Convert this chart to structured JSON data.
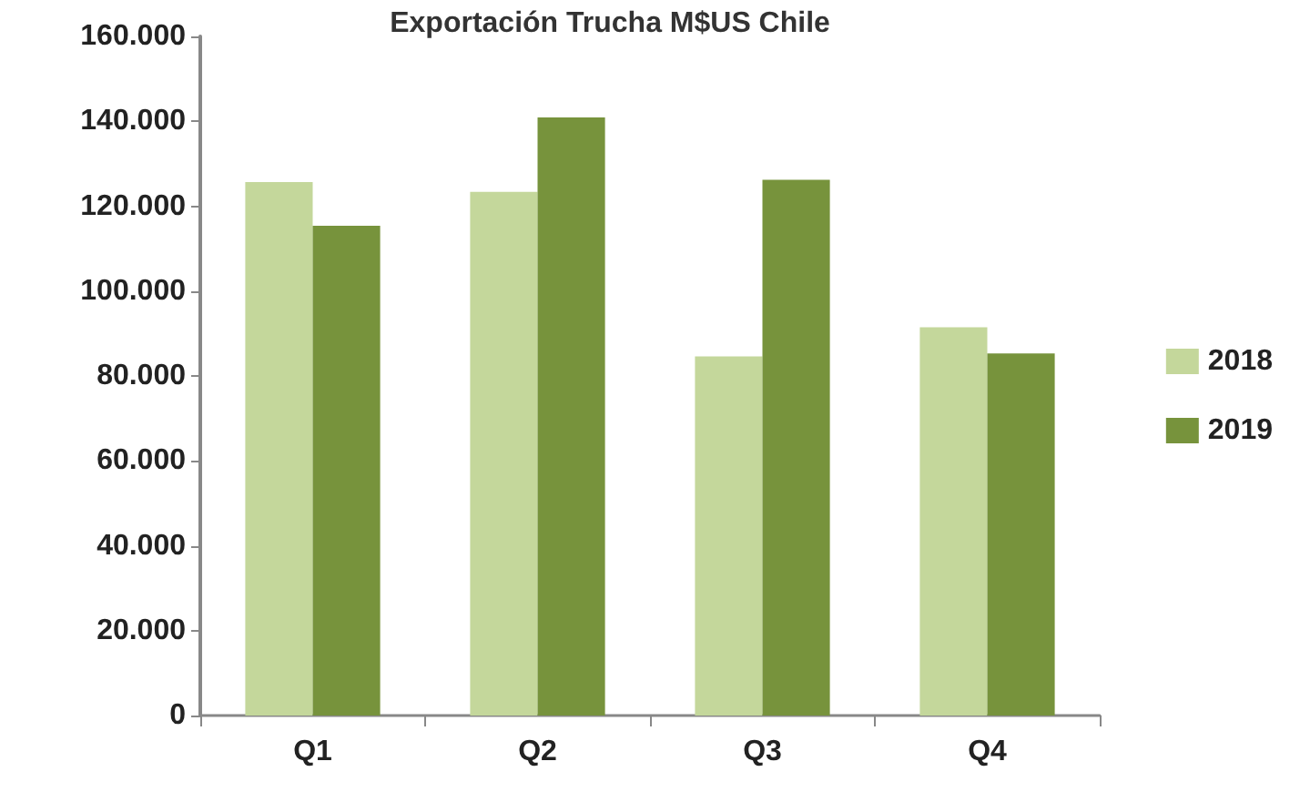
{
  "chart_data": {
    "type": "bar",
    "title": "Exportación Trucha M$US Chile",
    "categories": [
      "Q1",
      "Q2",
      "Q3",
      "Q4"
    ],
    "series": [
      {
        "name": "2018",
        "color": "#c4d79b",
        "values": [
          125700,
          123400,
          84600,
          91500
        ]
      },
      {
        "name": "2019",
        "color": "#77933c",
        "values": [
          115400,
          140900,
          126200,
          85300
        ]
      }
    ],
    "ylim": [
      0,
      160000
    ],
    "yticks": [
      {
        "value": 0,
        "label": "0"
      },
      {
        "value": 20000,
        "label": "20.000"
      },
      {
        "value": 40000,
        "label": "40.000"
      },
      {
        "value": 60000,
        "label": "60.000"
      },
      {
        "value": 80000,
        "label": "80.000"
      },
      {
        "value": 100000,
        "label": "100.000"
      },
      {
        "value": 120000,
        "label": "120.000"
      },
      {
        "value": 140000,
        "label": "140.000"
      },
      {
        "value": 160000,
        "label": "160.000"
      }
    ],
    "grid": false,
    "legend": "right"
  }
}
